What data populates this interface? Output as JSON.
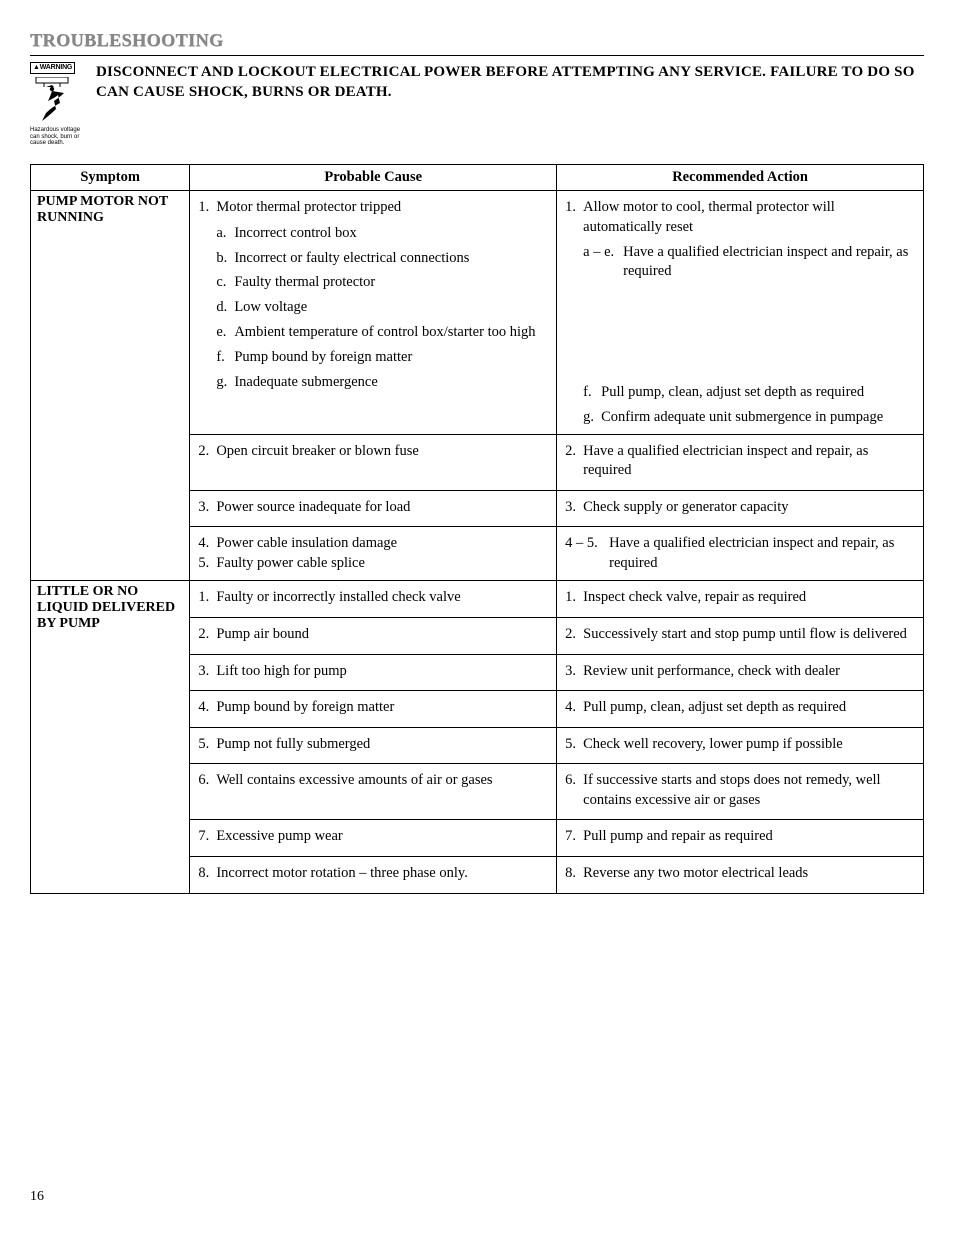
{
  "page": {
    "title": "TROUBLESHOOTING",
    "warning_badge": "WARNING",
    "hazard_caption": "Hazardous voltage can shock, burn or cause death.",
    "warning_text": "DISCONNECT AND LOCKOUT ELECTRICAL POWER BEFORE ATTEMPTING ANY SERVICE. FAILURE TO DO SO CAN CAUSE SHOCK, BURNS OR DEATH.",
    "page_number": "16"
  },
  "table": {
    "headers": {
      "symptom": "Symptom",
      "cause": "Probable Cause",
      "action": "Recommended Action"
    },
    "sections": [
      {
        "symptom": "PUMP MOTOR NOT RUNNING",
        "rows": [
          {
            "cause_num": "1.",
            "cause_txt": "Motor thermal protector tripped",
            "cause_subs": [
              {
                "l": "a.",
                "t": "Incorrect control box"
              },
              {
                "l": "b.",
                "t": "Incorrect or faulty electrical connections"
              },
              {
                "l": "c.",
                "t": "Faulty thermal protector"
              },
              {
                "l": "d.",
                "t": "Low voltage"
              },
              {
                "l": "e.",
                "t": "Ambient temperature of control box/starter too high"
              },
              {
                "l": "f.",
                "t": "Pump bound by foreign matter"
              },
              {
                "l": "g.",
                "t": "Inadequate submergence"
              }
            ],
            "action_num": "1.",
            "action_txt": "Allow motor to cool, thermal protector will automatically reset",
            "action_subs": [
              {
                "l": "a – e.",
                "t": "Have a qualified electrician inspect and repair, as required"
              },
              {
                "l": "f.",
                "t": "Pull pump, clean, adjust set depth as required"
              },
              {
                "l": "g.",
                "t": "Confirm adequate unit submergence in pumpage"
              }
            ],
            "action_sub_gap_before_f": true
          },
          {
            "cause_num": "2.",
            "cause_txt": "Open circuit breaker or blown fuse",
            "action_num": "2.",
            "action_txt": "Have a qualified electrician inspect and repair, as required"
          },
          {
            "cause_num": "3.",
            "cause_txt": "Power source inadequate for load",
            "action_num": "3.",
            "action_txt": "Check supply or generator capacity"
          },
          {
            "cause_multi": [
              {
                "n": "4.",
                "t": "Power cable insulation damage"
              },
              {
                "n": "5.",
                "t": "Faulty power cable splice"
              }
            ],
            "action_range": "4 – 5.",
            "action_txt": "Have a qualified electrician inspect and repair, as required"
          }
        ]
      },
      {
        "symptom": "LITTLE OR NO LIQUID DELIVERED BY PUMP",
        "rows": [
          {
            "cause_num": "1.",
            "cause_txt": "Faulty or incorrectly installed check valve",
            "action_num": "1.",
            "action_txt": "Inspect check valve, repair as required"
          },
          {
            "cause_num": "2.",
            "cause_txt": "Pump air bound",
            "action_num": "2.",
            "action_txt": "Successively start and stop pump until flow is delivered"
          },
          {
            "cause_num": "3.",
            "cause_txt": "Lift too high for pump",
            "action_num": "3.",
            "action_txt": "Review unit performance, check with dealer"
          },
          {
            "cause_num": "4.",
            "cause_txt": "Pump bound by foreign matter",
            "action_num": "4.",
            "action_txt": "Pull pump, clean, adjust set depth as required"
          },
          {
            "cause_num": "5.",
            "cause_txt": "Pump not fully submerged",
            "action_num": "5.",
            "action_txt": "Check well recovery, lower pump if possible"
          },
          {
            "cause_num": "6.",
            "cause_txt": "Well contains excessive amounts of air or gases",
            "action_num": "6.",
            "action_txt": "If successive starts and stops does not remedy, well contains excessive air or gases"
          },
          {
            "cause_num": "7.",
            "cause_txt": "Excessive pump wear",
            "action_num": "7.",
            "action_txt": "Pull pump and repair as required"
          },
          {
            "cause_num": "8.",
            "cause_txt": "Incorrect motor rotation – three phase only.",
            "action_num": "8.",
            "action_txt": "Reverse any two motor electrical leads"
          }
        ]
      }
    ]
  },
  "style": {
    "title_color": "#888888",
    "border_color": "#000000",
    "body_font": "Georgia, Times New Roman, serif",
    "body_size_pt": 11,
    "header_bold": true
  }
}
